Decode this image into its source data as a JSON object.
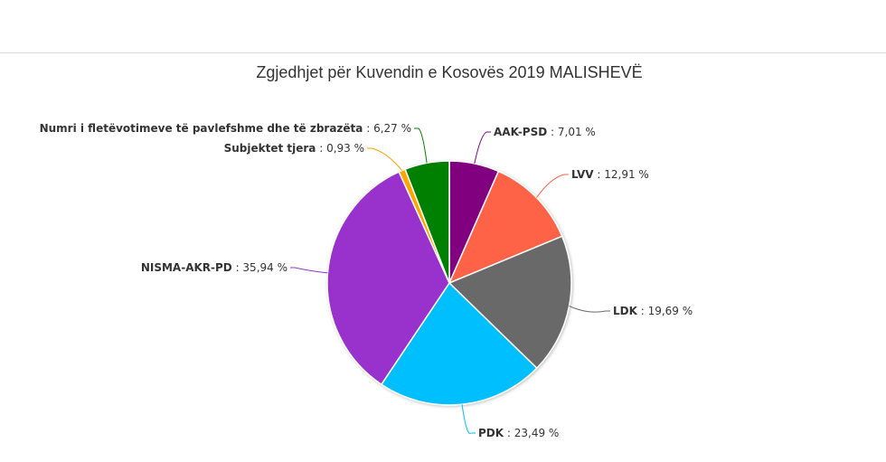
{
  "chart_data": {
    "type": "pie",
    "title": "Zgjedhjet për Kuvendin e Kosovës 2019 MALISHEVË",
    "legend": "none",
    "slices": [
      {
        "name": "AAK-PSD",
        "value": 7.01,
        "label": "7,01 %",
        "color": "#800080"
      },
      {
        "name": "LVV",
        "value": 12.91,
        "label": "12,91 %",
        "color": "#ff6347"
      },
      {
        "name": "LDK",
        "value": 19.69,
        "label": "19,69 %",
        "color": "#696969"
      },
      {
        "name": "PDK",
        "value": 23.49,
        "label": "23,49 %",
        "color": "#00bfff"
      },
      {
        "name": "NISMA-AKR-PD",
        "value": 35.94,
        "label": "35,94 %",
        "color": "#9932cc"
      },
      {
        "name": "Subjektet tjera",
        "value": 0.93,
        "label": "0,93 %",
        "color": "#ffa500"
      },
      {
        "name": "Numri i fletëvotimeve të pavlefshme dhe të zbrazëta",
        "value": 6.27,
        "label": "6,27 %",
        "color": "#008000"
      }
    ]
  }
}
